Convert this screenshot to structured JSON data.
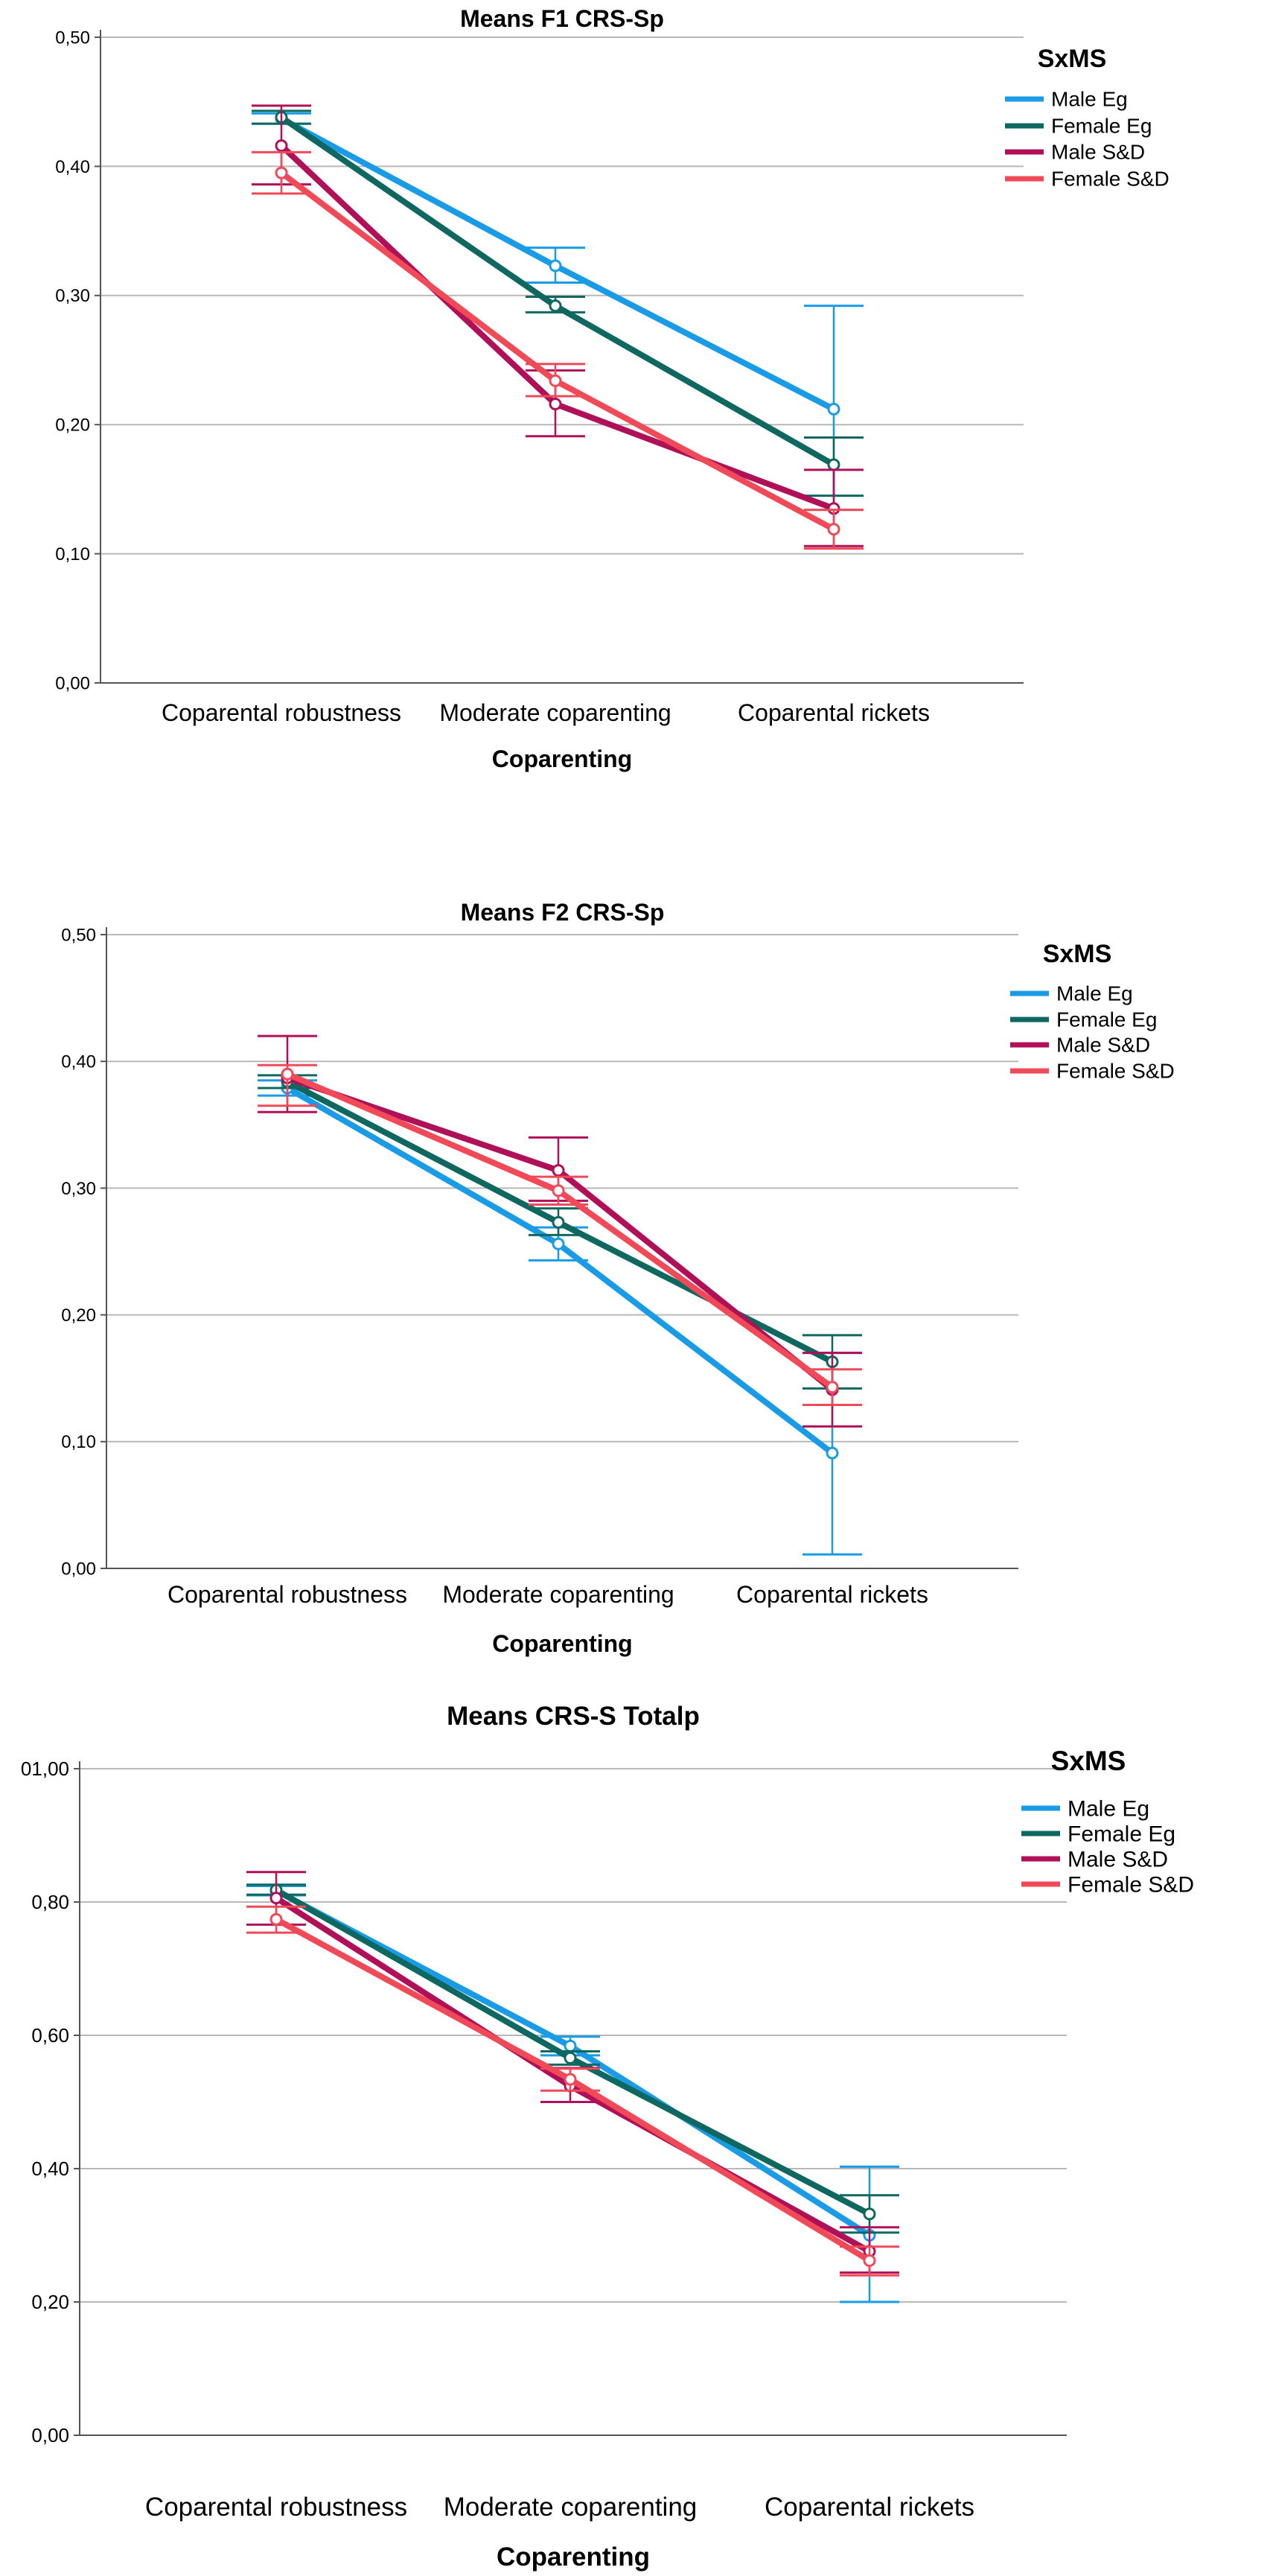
{
  "charts": [
    {
      "type": "line",
      "title": "Means F1 CRS-Sp",
      "xlabel": "Coparenting",
      "categories": [
        "Coparental robustness",
        "Moderate coparenting",
        "Coparental rickets"
      ],
      "ylim": [
        0,
        0.5
      ],
      "yticks": [
        "0,00",
        "0,10",
        "0,20",
        "0,30",
        "0,40",
        "0,50"
      ],
      "legend_title": "SxMS",
      "series": [
        {
          "name": "Male Eg",
          "color": "#1a9be6",
          "values": [
            0.437,
            0.323,
            0.212
          ],
          "low": [
            0.433,
            0.31,
            0.134
          ],
          "high": [
            0.441,
            0.337,
            0.292
          ]
        },
        {
          "name": "Female Eg",
          "color": "#0e6860",
          "values": [
            0.438,
            0.292,
            0.169
          ],
          "low": [
            0.433,
            0.287,
            0.145
          ],
          "high": [
            0.443,
            0.299,
            0.19
          ]
        },
        {
          "name": "Male S&D",
          "color": "#b01058",
          "values": [
            0.416,
            0.216,
            0.135
          ],
          "low": [
            0.386,
            0.191,
            0.106
          ],
          "high": [
            0.447,
            0.242,
            0.165
          ]
        },
        {
          "name": "Female S&D",
          "color": "#f04a58",
          "values": [
            0.395,
            0.234,
            0.119
          ],
          "low": [
            0.379,
            0.222,
            0.104
          ],
          "high": [
            0.411,
            0.247,
            0.134
          ]
        }
      ]
    },
    {
      "type": "line",
      "title": "Means F2 CRS-Sp",
      "xlabel": "Coparenting",
      "categories": [
        "Coparental robustness",
        "Moderate coparenting",
        "Coparental rickets"
      ],
      "ylim": [
        0,
        0.5
      ],
      "yticks": [
        "0,00",
        "0,10",
        "0,20",
        "0,30",
        "0,40",
        "0,50"
      ],
      "legend_title": "SxMS",
      "series": [
        {
          "name": "Male Eg",
          "color": "#1a9be6",
          "values": [
            0.379,
            0.256,
            0.091
          ],
          "low": [
            0.373,
            0.243,
            0.011
          ],
          "high": [
            0.385,
            0.269,
            0.17
          ]
        },
        {
          "name": "Female Eg",
          "color": "#0e6860",
          "values": [
            0.384,
            0.273,
            0.163
          ],
          "low": [
            0.379,
            0.263,
            0.142
          ],
          "high": [
            0.389,
            0.284,
            0.184
          ]
        },
        {
          "name": "Male S&D",
          "color": "#b01058",
          "values": [
            0.387,
            0.314,
            0.141
          ],
          "low": [
            0.36,
            0.29,
            0.112
          ],
          "high": [
            0.42,
            0.34,
            0.17
          ]
        },
        {
          "name": "Female S&D",
          "color": "#f04a58",
          "values": [
            0.39,
            0.298,
            0.143
          ],
          "low": [
            0.365,
            0.287,
            0.129
          ],
          "high": [
            0.397,
            0.309,
            0.157
          ]
        }
      ]
    },
    {
      "type": "line",
      "title": "Means CRS-S Totalp",
      "xlabel": "Coparenting",
      "categories": [
        "Coparental robustness",
        "Moderate coparenting",
        "Coparental rickets"
      ],
      "ylim": [
        0,
        1.0
      ],
      "yticks": [
        "0,00",
        "0,20",
        "0,40",
        "0,60",
        "0,80",
        "01,00"
      ],
      "legend_title": "SxMS",
      "series": [
        {
          "name": "Male Eg",
          "color": "#1a9be6",
          "values": [
            0.817,
            0.584,
            0.3
          ],
          "low": [
            0.81,
            0.57,
            0.2
          ],
          "high": [
            0.824,
            0.598,
            0.403
          ]
        },
        {
          "name": "Female Eg",
          "color": "#0e6860",
          "values": [
            0.818,
            0.566,
            0.332
          ],
          "low": [
            0.811,
            0.556,
            0.304
          ],
          "high": [
            0.826,
            0.576,
            0.36
          ]
        },
        {
          "name": "Male S&D",
          "color": "#b01058",
          "values": [
            0.806,
            0.524,
            0.276
          ],
          "low": [
            0.766,
            0.5,
            0.244
          ],
          "high": [
            0.845,
            0.551,
            0.312
          ]
        },
        {
          "name": "Female S&D",
          "color": "#f04a58",
          "values": [
            0.774,
            0.534,
            0.262
          ],
          "low": [
            0.754,
            0.517,
            0.24
          ],
          "high": [
            0.793,
            0.55,
            0.283
          ]
        }
      ]
    }
  ]
}
